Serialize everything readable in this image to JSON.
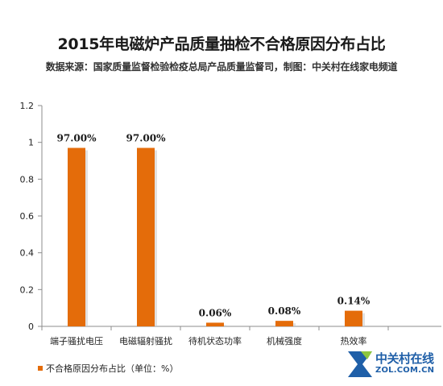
{
  "colors": {
    "bar": "#e46c0a",
    "bar_shadow": "#c9c9c9",
    "axis": "#8c8c8c",
    "watermark_blue": "#1f5fa8",
    "watermark_green": "#8dc63f"
  },
  "watermark": {
    "brand": "中关村在线",
    "site": "ZOL.COM.CN",
    "icon": "zol-logo-icon"
  },
  "chart_data": {
    "type": "bar",
    "title": "2015年电磁炉产品质量抽检不合格原因分布占比",
    "subtitle": "数据来源：国家质量监督检验检疫总局产品质量监督司，制图：中关村在线家电频道",
    "categories": [
      "端子骚扰电压",
      "电磁辐射骚扰",
      "待机状态功率",
      "机械强度",
      "热效率"
    ],
    "values": [
      0.97,
      0.97,
      0.0006,
      0.0008,
      0.0014
    ],
    "display_values": [
      0.97,
      0.97,
      0.02,
      0.03,
      0.085
    ],
    "data_labels": [
      "97.00%",
      "97.00%",
      "0.06%",
      "0.08%",
      "0.14%"
    ],
    "ylim": [
      0,
      1.2
    ],
    "yticks": [
      0,
      0.2,
      0.4,
      0.6,
      0.8,
      1,
      1.2
    ],
    "ytick_labels": [
      "0",
      "0.2",
      "0.4",
      "0.6",
      "0.8",
      "1",
      "1.2"
    ],
    "xlabel": "",
    "ylabel": "",
    "grid": false,
    "legend": {
      "position": "bottom-left",
      "label": "不合格原因分布占比（单位：%）"
    }
  }
}
